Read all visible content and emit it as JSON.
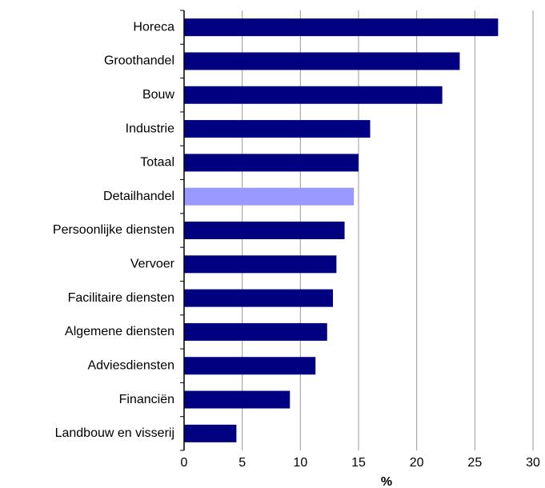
{
  "chart_data": {
    "type": "bar",
    "orientation": "horizontal",
    "categories": [
      "Horeca",
      "Groothandel",
      "Bouw",
      "Industrie",
      "Totaal",
      "Detailhandel",
      "Persoonlijke diensten",
      "Vervoer",
      "Facilitaire diensten",
      "Algemene diensten",
      "Adviesdiensten",
      "Financiën",
      "Landbouw en visserij"
    ],
    "values": [
      27.0,
      23.7,
      22.2,
      16.0,
      15.0,
      14.6,
      13.8,
      13.1,
      12.8,
      12.3,
      11.3,
      9.1,
      4.5
    ],
    "colors": [
      "#000080",
      "#000080",
      "#000080",
      "#000080",
      "#000080",
      "#9999ff",
      "#000080",
      "#000080",
      "#000080",
      "#000080",
      "#000080",
      "#000080",
      "#000080"
    ],
    "x_label": "%",
    "xlim": [
      0,
      30
    ],
    "xticks": [
      0,
      5,
      10,
      15,
      20,
      25,
      30
    ],
    "grid": true
  }
}
